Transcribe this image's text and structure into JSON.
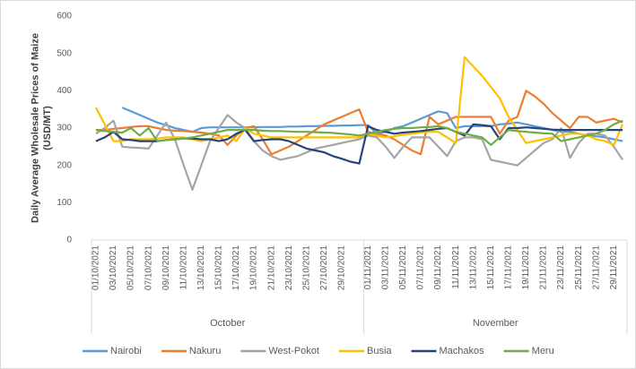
{
  "chart_data": {
    "type": "line",
    "ylabel": "Daily Average Wholesale Prices of Maize (USD/MT)",
    "categories": [
      "01/10/2021",
      null,
      "03/10/2021",
      null,
      "05/10/2021",
      null,
      "07/10/2021",
      null,
      "09/10/2021",
      null,
      "11/10/2021",
      null,
      "13/10/2021",
      null,
      "15/10/2021",
      null,
      "17/10/2021",
      null,
      "19/10/2021",
      null,
      "21/10/2021",
      null,
      "23/10/2021",
      null,
      "25/10/2021",
      null,
      "27/10/2021",
      null,
      "29/10/2021",
      null,
      null,
      "01/11/2021",
      null,
      "03/11/2021",
      null,
      "05/11/2021",
      null,
      "07/11/2021",
      null,
      "09/11/2021",
      null,
      "11/11/2021",
      null,
      "13/11/2021",
      null,
      "15/11/2021",
      null,
      "17/11/2021",
      null,
      "19/11/2021",
      null,
      "21/11/2021",
      null,
      "23/11/2021",
      null,
      "25/11/2021",
      null,
      "27/11/2021",
      null,
      "29/11/2021",
      null
    ],
    "x_groups": [
      "October",
      "November"
    ],
    "ylim": [
      0,
      600
    ],
    "yticks": [
      0,
      100,
      200,
      300,
      400,
      500,
      600
    ],
    "grid": false,
    "series": [
      {
        "name": "Nairobi",
        "color": "#5b9bd5",
        "values": [
          null,
          null,
          null,
          355,
          345,
          335,
          325,
          315,
          308,
          300,
          295,
          290,
          300,
          302,
          302,
          302,
          302,
          302,
          302,
          303,
          303,
          303,
          304,
          304,
          305,
          305,
          306,
          306,
          307,
          307,
          308,
          308,
          285,
          290,
          300,
          305,
          315,
          325,
          335,
          345,
          340,
          300,
          305,
          305,
          305,
          305,
          310,
          312,
          315,
          310,
          305,
          300,
          295,
          290,
          290,
          285,
          280,
          278,
          275,
          270,
          265
        ]
      },
      {
        "name": "Nakuru",
        "color": "#ed7d31",
        "values": [
          295,
          295,
          298,
          300,
          303,
          305,
          305,
          300,
          295,
          293,
          292,
          290,
          288,
          285,
          280,
          255,
          280,
          300,
          305,
          270,
          230,
          240,
          250,
          265,
          280,
          295,
          310,
          320,
          330,
          340,
          350,
          290,
          285,
          280,
          270,
          255,
          240,
          230,
          330,
          310,
          320,
          330,
          330,
          330,
          330,
          330,
          285,
          320,
          330,
          400,
          385,
          365,
          340,
          320,
          300,
          330,
          330,
          315,
          320,
          325,
          315
        ]
      },
      {
        "name": "West-Pokot",
        "color": "#a5a5a5",
        "values": [
          285,
          300,
          320,
          250,
          248,
          247,
          245,
          280,
          315,
          270,
          200,
          135,
          200,
          265,
          300,
          335,
          315,
          300,
          265,
          240,
          225,
          215,
          220,
          225,
          235,
          245,
          250,
          255,
          260,
          265,
          270,
          280,
          275,
          250,
          220,
          250,
          275,
          275,
          275,
          250,
          225,
          265,
          275,
          275,
          270,
          215,
          210,
          205,
          200,
          220,
          240,
          260,
          270,
          300,
          220,
          260,
          285,
          285,
          280,
          250,
          215
        ]
      },
      {
        "name": "Busia",
        "color": "#ffc000",
        "values": [
          355,
          310,
          265,
          265,
          270,
          270,
          270,
          272,
          275,
          275,
          275,
          270,
          265,
          270,
          275,
          280,
          265,
          300,
          285,
          280,
          275,
          275,
          275,
          275,
          275,
          275,
          275,
          275,
          275,
          275,
          275,
          285,
          280,
          275,
          278,
          282,
          285,
          288,
          290,
          290,
          275,
          260,
          490,
          465,
          440,
          410,
          380,
          330,
          295,
          260,
          265,
          270,
          275,
          280,
          285,
          285,
          280,
          270,
          265,
          255,
          310
        ]
      },
      {
        "name": "Machakos",
        "color": "#264478",
        "values": [
          265,
          275,
          290,
          270,
          268,
          265,
          265,
          265,
          268,
          270,
          272,
          272,
          270,
          270,
          265,
          270,
          285,
          295,
          265,
          268,
          270,
          270,
          265,
          255,
          245,
          240,
          235,
          225,
          218,
          210,
          205,
          305,
          295,
          290,
          285,
          288,
          290,
          292,
          295,
          298,
          300,
          290,
          280,
          310,
          308,
          305,
          270,
          300,
          300,
          302,
          300,
          298,
          296,
          295,
          295,
          295,
          295,
          295,
          295,
          295,
          295
        ]
      },
      {
        "name": "Meru",
        "color": "#70ad47",
        "values": [
          295,
          292,
          290,
          288,
          300,
          280,
          300,
          265,
          268,
          270,
          272,
          275,
          280,
          285,
          290,
          295,
          295,
          295,
          295,
          293,
          292,
          292,
          291,
          290,
          290,
          289,
          288,
          287,
          285,
          283,
          280,
          285,
          290,
          295,
          298,
          300,
          300,
          302,
          303,
          305,
          300,
          290,
          285,
          280,
          275,
          255,
          275,
          295,
          292,
          290,
          288,
          286,
          285,
          265,
          270,
          275,
          280,
          285,
          295,
          310,
          320
        ]
      }
    ]
  }
}
